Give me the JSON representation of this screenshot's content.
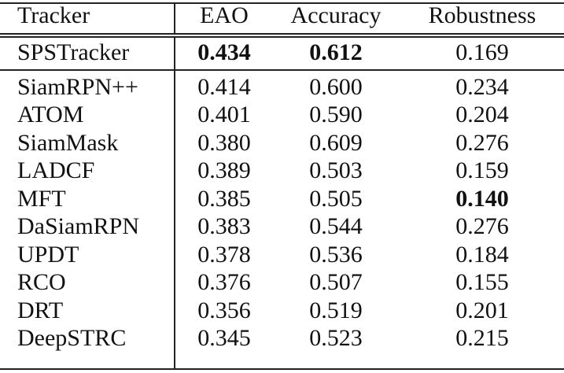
{
  "table": {
    "headers": [
      "Tracker",
      "EAO",
      "Accuracy",
      "Robustness"
    ],
    "rows": [
      {
        "tracker": "SPSTracker",
        "eao": "0.434",
        "accuracy": "0.612",
        "robustness": "0.169",
        "bold": [
          "eao",
          "accuracy"
        ]
      },
      {
        "tracker": "SiamRPN++",
        "eao": "0.414",
        "accuracy": "0.600",
        "robustness": "0.234",
        "bold": []
      },
      {
        "tracker": "ATOM",
        "eao": "0.401",
        "accuracy": "0.590",
        "robustness": "0.204",
        "bold": []
      },
      {
        "tracker": "SiamMask",
        "eao": "0.380",
        "accuracy": "0.609",
        "robustness": "0.276",
        "bold": []
      },
      {
        "tracker": "LADCF",
        "eao": "0.389",
        "accuracy": "0.503",
        "robustness": "0.159",
        "bold": []
      },
      {
        "tracker": "MFT",
        "eao": "0.385",
        "accuracy": "0.505",
        "robustness": "0.140",
        "bold": [
          "robustness"
        ]
      },
      {
        "tracker": "DaSiamRPN",
        "eao": "0.383",
        "accuracy": "0.544",
        "robustness": "0.276",
        "bold": []
      },
      {
        "tracker": "UPDT",
        "eao": "0.378",
        "accuracy": "0.536",
        "robustness": "0.184",
        "bold": []
      },
      {
        "tracker": "RCO",
        "eao": "0.376",
        "accuracy": "0.507",
        "robustness": "0.155",
        "bold": []
      },
      {
        "tracker": "DRT",
        "eao": "0.356",
        "accuracy": "0.519",
        "robustness": "0.201",
        "bold": []
      },
      {
        "tracker": "DeepSTRC",
        "eao": "0.345",
        "accuracy": "0.523",
        "robustness": "0.215",
        "bold": []
      }
    ]
  }
}
